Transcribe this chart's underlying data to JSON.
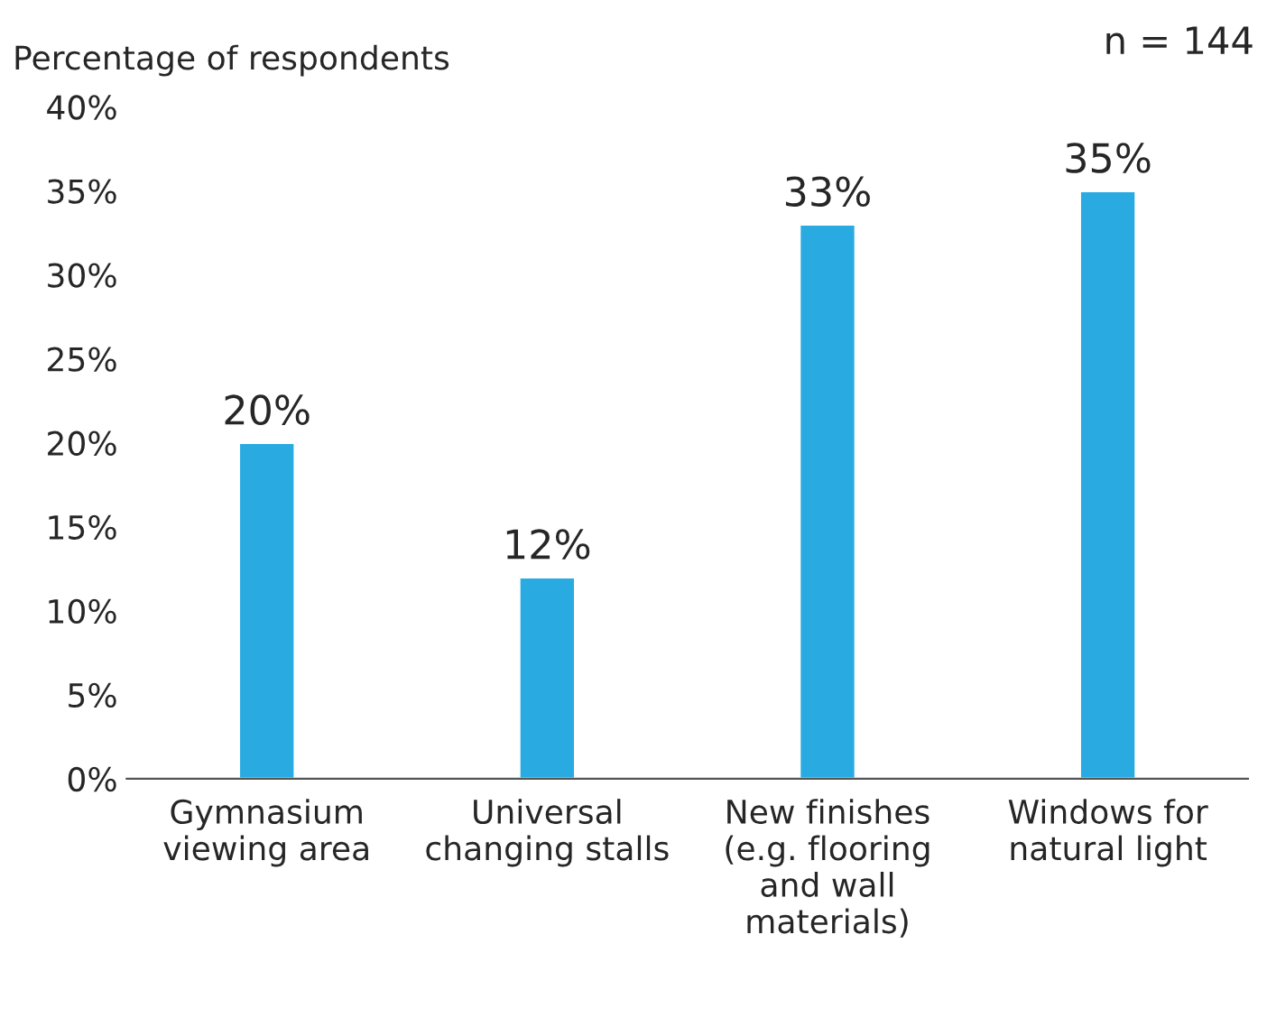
{
  "chart_data": {
    "type": "bar",
    "ylabel": "Percentage of respondents",
    "annotations": [
      "n = 144"
    ],
    "categories": [
      "Gymnasium\nviewing area",
      "Universal\nchanging stalls",
      "New finishes\n(e.g. flooring\nand wall\nmaterials)",
      "Windows for\nnatural light"
    ],
    "values": [
      20,
      12,
      33,
      35
    ],
    "color": "#29abe2",
    "ylim": [
      0,
      40
    ],
    "yticks": [
      {
        "value": 0,
        "label": "0%"
      },
      {
        "value": 5,
        "label": "5%"
      },
      {
        "value": 10,
        "label": "10%"
      },
      {
        "value": 15,
        "label": "15%"
      },
      {
        "value": 20,
        "label": "20%"
      },
      {
        "value": 25,
        "label": "25%"
      },
      {
        "value": 30,
        "label": "30%"
      },
      {
        "value": 35,
        "label": "35%"
      },
      {
        "value": 40,
        "label": "40%"
      }
    ],
    "value_labels": [
      "20%",
      "12%",
      "33%",
      "35%"
    ],
    "grid": false
  }
}
